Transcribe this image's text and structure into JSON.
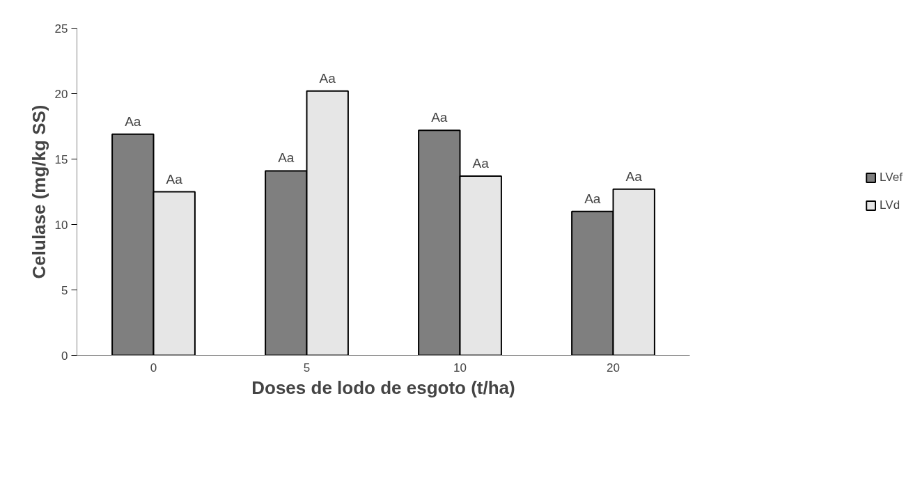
{
  "chart_data": {
    "type": "bar",
    "xlabel": "Doses de lodo de esgoto (t/ha)",
    "ylabel": "Celulase (mg/kg SS)",
    "categories": [
      "0",
      "5",
      "10",
      "20"
    ],
    "ylim": [
      0,
      25
    ],
    "yticks": [
      0,
      5,
      10,
      15,
      20,
      25
    ],
    "grid": false,
    "legend": "right",
    "series": [
      {
        "name": "LVef",
        "color": "#7f7f7f",
        "values": [
          16.9,
          14.1,
          17.2,
          11.0
        ],
        "value_labels": [
          "Aa",
          "Aa",
          "Aa",
          "Aa"
        ]
      },
      {
        "name": "LVd",
        "color": "#e6e6e6",
        "values": [
          12.5,
          20.2,
          13.7,
          12.7
        ],
        "value_labels": [
          "Aa",
          "Aa",
          "Aa",
          "Aa"
        ]
      }
    ]
  }
}
